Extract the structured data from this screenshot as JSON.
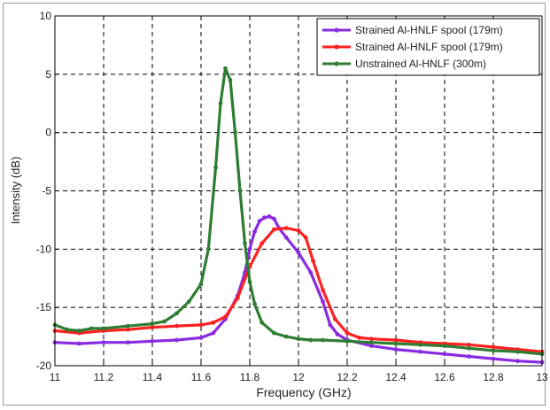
{
  "chart_data": {
    "type": "line",
    "title": "",
    "xlabel": "Frequency (GHz)",
    "ylabel": "Intensity (dB)",
    "xlim": [
      11,
      13
    ],
    "ylim": [
      -20,
      10
    ],
    "xticks": [
      11,
      11.2,
      11.4,
      11.6,
      11.8,
      12,
      12.2,
      12.4,
      12.6,
      12.8,
      13
    ],
    "xtick_labels": [
      "11",
      "11.2",
      "11.4",
      "11.6",
      "11.8",
      "12",
      "12.2",
      "12.4",
      "12.6",
      "12.8",
      "13"
    ],
    "yticks": [
      -20,
      -15,
      -10,
      -5,
      0,
      5,
      10
    ],
    "ytick_labels": [
      "-20",
      "-15",
      "-10",
      "-5",
      "0",
      "5",
      "10"
    ],
    "grid": true,
    "legend_position": "top-right",
    "series": [
      {
        "name": "Strained Al-HNLF spool (179m)",
        "color": "#8b2be2",
        "x": [
          11.0,
          11.1,
          11.2,
          11.3,
          11.4,
          11.5,
          11.6,
          11.65,
          11.7,
          11.75,
          11.78,
          11.8,
          11.82,
          11.84,
          11.86,
          11.88,
          11.9,
          11.92,
          11.95,
          12.0,
          12.05,
          12.1,
          12.13,
          12.16,
          12.2,
          12.3,
          12.4,
          12.5,
          12.6,
          12.7,
          12.8,
          12.9,
          13.0
        ],
        "y": [
          -18.0,
          -18.1,
          -18.0,
          -18.0,
          -17.9,
          -17.8,
          -17.6,
          -17.2,
          -16.0,
          -14.0,
          -12.0,
          -10.0,
          -8.5,
          -7.6,
          -7.3,
          -7.2,
          -7.4,
          -8.2,
          -9.0,
          -10.3,
          -12.0,
          -14.5,
          -16.5,
          -17.3,
          -17.8,
          -18.3,
          -18.6,
          -18.8,
          -19.0,
          -19.2,
          -19.4,
          -19.6,
          -19.7
        ]
      },
      {
        "name": "Strained Al-HNLF spool (179m)",
        "color": "#ff2020",
        "x": [
          11.0,
          11.1,
          11.2,
          11.3,
          11.4,
          11.5,
          11.6,
          11.65,
          11.7,
          11.75,
          11.8,
          11.85,
          11.9,
          11.95,
          12.0,
          12.03,
          12.06,
          12.1,
          12.15,
          12.2,
          12.25,
          12.3,
          12.4,
          12.5,
          12.6,
          12.7,
          12.8,
          12.9,
          13.0
        ],
        "y": [
          -17.0,
          -17.2,
          -17.0,
          -16.9,
          -16.7,
          -16.6,
          -16.5,
          -16.3,
          -15.8,
          -14.2,
          -11.5,
          -9.5,
          -8.3,
          -8.2,
          -8.4,
          -9.0,
          -11.0,
          -13.5,
          -16.0,
          -17.2,
          -17.6,
          -17.7,
          -17.8,
          -18.0,
          -18.1,
          -18.2,
          -18.4,
          -18.6,
          -18.8
        ]
      },
      {
        "name": "Unstrained Al-HNLF (300m)",
        "color": "#2e7d32",
        "x": [
          11.0,
          11.05,
          11.1,
          11.15,
          11.2,
          11.3,
          11.4,
          11.45,
          11.5,
          11.55,
          11.6,
          11.63,
          11.66,
          11.68,
          11.7,
          11.72,
          11.74,
          11.76,
          11.78,
          11.8,
          11.82,
          11.85,
          11.9,
          11.95,
          12.0,
          12.05,
          12.1,
          12.2,
          12.3,
          12.4,
          12.5,
          12.6,
          12.7,
          12.8,
          12.9,
          13.0
        ],
        "y": [
          -16.5,
          -16.9,
          -17.0,
          -16.8,
          -16.8,
          -16.6,
          -16.4,
          -16.2,
          -15.5,
          -14.5,
          -13.0,
          -10.0,
          -3.0,
          2.5,
          5.5,
          4.5,
          0.0,
          -5.0,
          -9.5,
          -12.8,
          -14.7,
          -16.3,
          -17.2,
          -17.5,
          -17.7,
          -17.8,
          -17.8,
          -17.9,
          -18.0,
          -18.1,
          -18.2,
          -18.3,
          -18.5,
          -18.7,
          -18.8,
          -19.0
        ]
      }
    ]
  }
}
